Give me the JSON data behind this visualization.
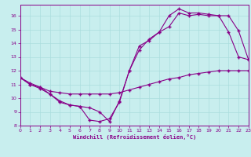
{
  "xlabel": "Windchill (Refroidissement éolien,°C)",
  "bg_color": "#c8eeee",
  "line_color": "#880088",
  "grid_color": "#aadddd",
  "xlim": [
    0,
    23
  ],
  "ylim": [
    8,
    16.8
  ],
  "xticks": [
    0,
    1,
    2,
    3,
    4,
    5,
    6,
    7,
    8,
    9,
    10,
    11,
    12,
    13,
    14,
    15,
    16,
    17,
    18,
    19,
    20,
    21,
    22,
    23
  ],
  "yticks": [
    8,
    9,
    10,
    11,
    12,
    13,
    14,
    15,
    16
  ],
  "line1_x": [
    0,
    1,
    2,
    3,
    4,
    5,
    6,
    7,
    8,
    9,
    10,
    11,
    12,
    13,
    14,
    15,
    16,
    17,
    18,
    19,
    20,
    21,
    22,
    23
  ],
  "line1_y": [
    11.5,
    11.1,
    10.8,
    10.5,
    10.4,
    10.3,
    10.3,
    10.3,
    10.3,
    10.3,
    10.4,
    10.6,
    10.8,
    11.0,
    11.2,
    11.4,
    11.5,
    11.7,
    11.8,
    11.9,
    12.0,
    12.0,
    12.0,
    12.0
  ],
  "line2_x": [
    0,
    1,
    2,
    3,
    4,
    5,
    6,
    7,
    8,
    9,
    10,
    11,
    12,
    13,
    14,
    15,
    16,
    17,
    18,
    19,
    20,
    21,
    22,
    23
  ],
  "line2_y": [
    11.5,
    11.0,
    10.8,
    10.3,
    9.8,
    9.5,
    9.4,
    9.3,
    9.0,
    8.3,
    9.8,
    12.0,
    13.8,
    14.2,
    14.8,
    15.2,
    16.2,
    16.0,
    16.1,
    16.0,
    16.0,
    14.8,
    13.0,
    12.8
  ],
  "line3_x": [
    0,
    1,
    2,
    3,
    4,
    5,
    6,
    7,
    8,
    9,
    10,
    11,
    12,
    13,
    14,
    15,
    16,
    17,
    18,
    19,
    20,
    21,
    22,
    23
  ],
  "line3_y": [
    11.5,
    11.0,
    10.7,
    10.3,
    9.7,
    9.5,
    9.4,
    8.4,
    8.3,
    8.5,
    9.7,
    12.0,
    13.5,
    14.3,
    14.8,
    16.0,
    16.5,
    16.2,
    16.2,
    16.1,
    16.0,
    16.0,
    14.9,
    12.8
  ]
}
